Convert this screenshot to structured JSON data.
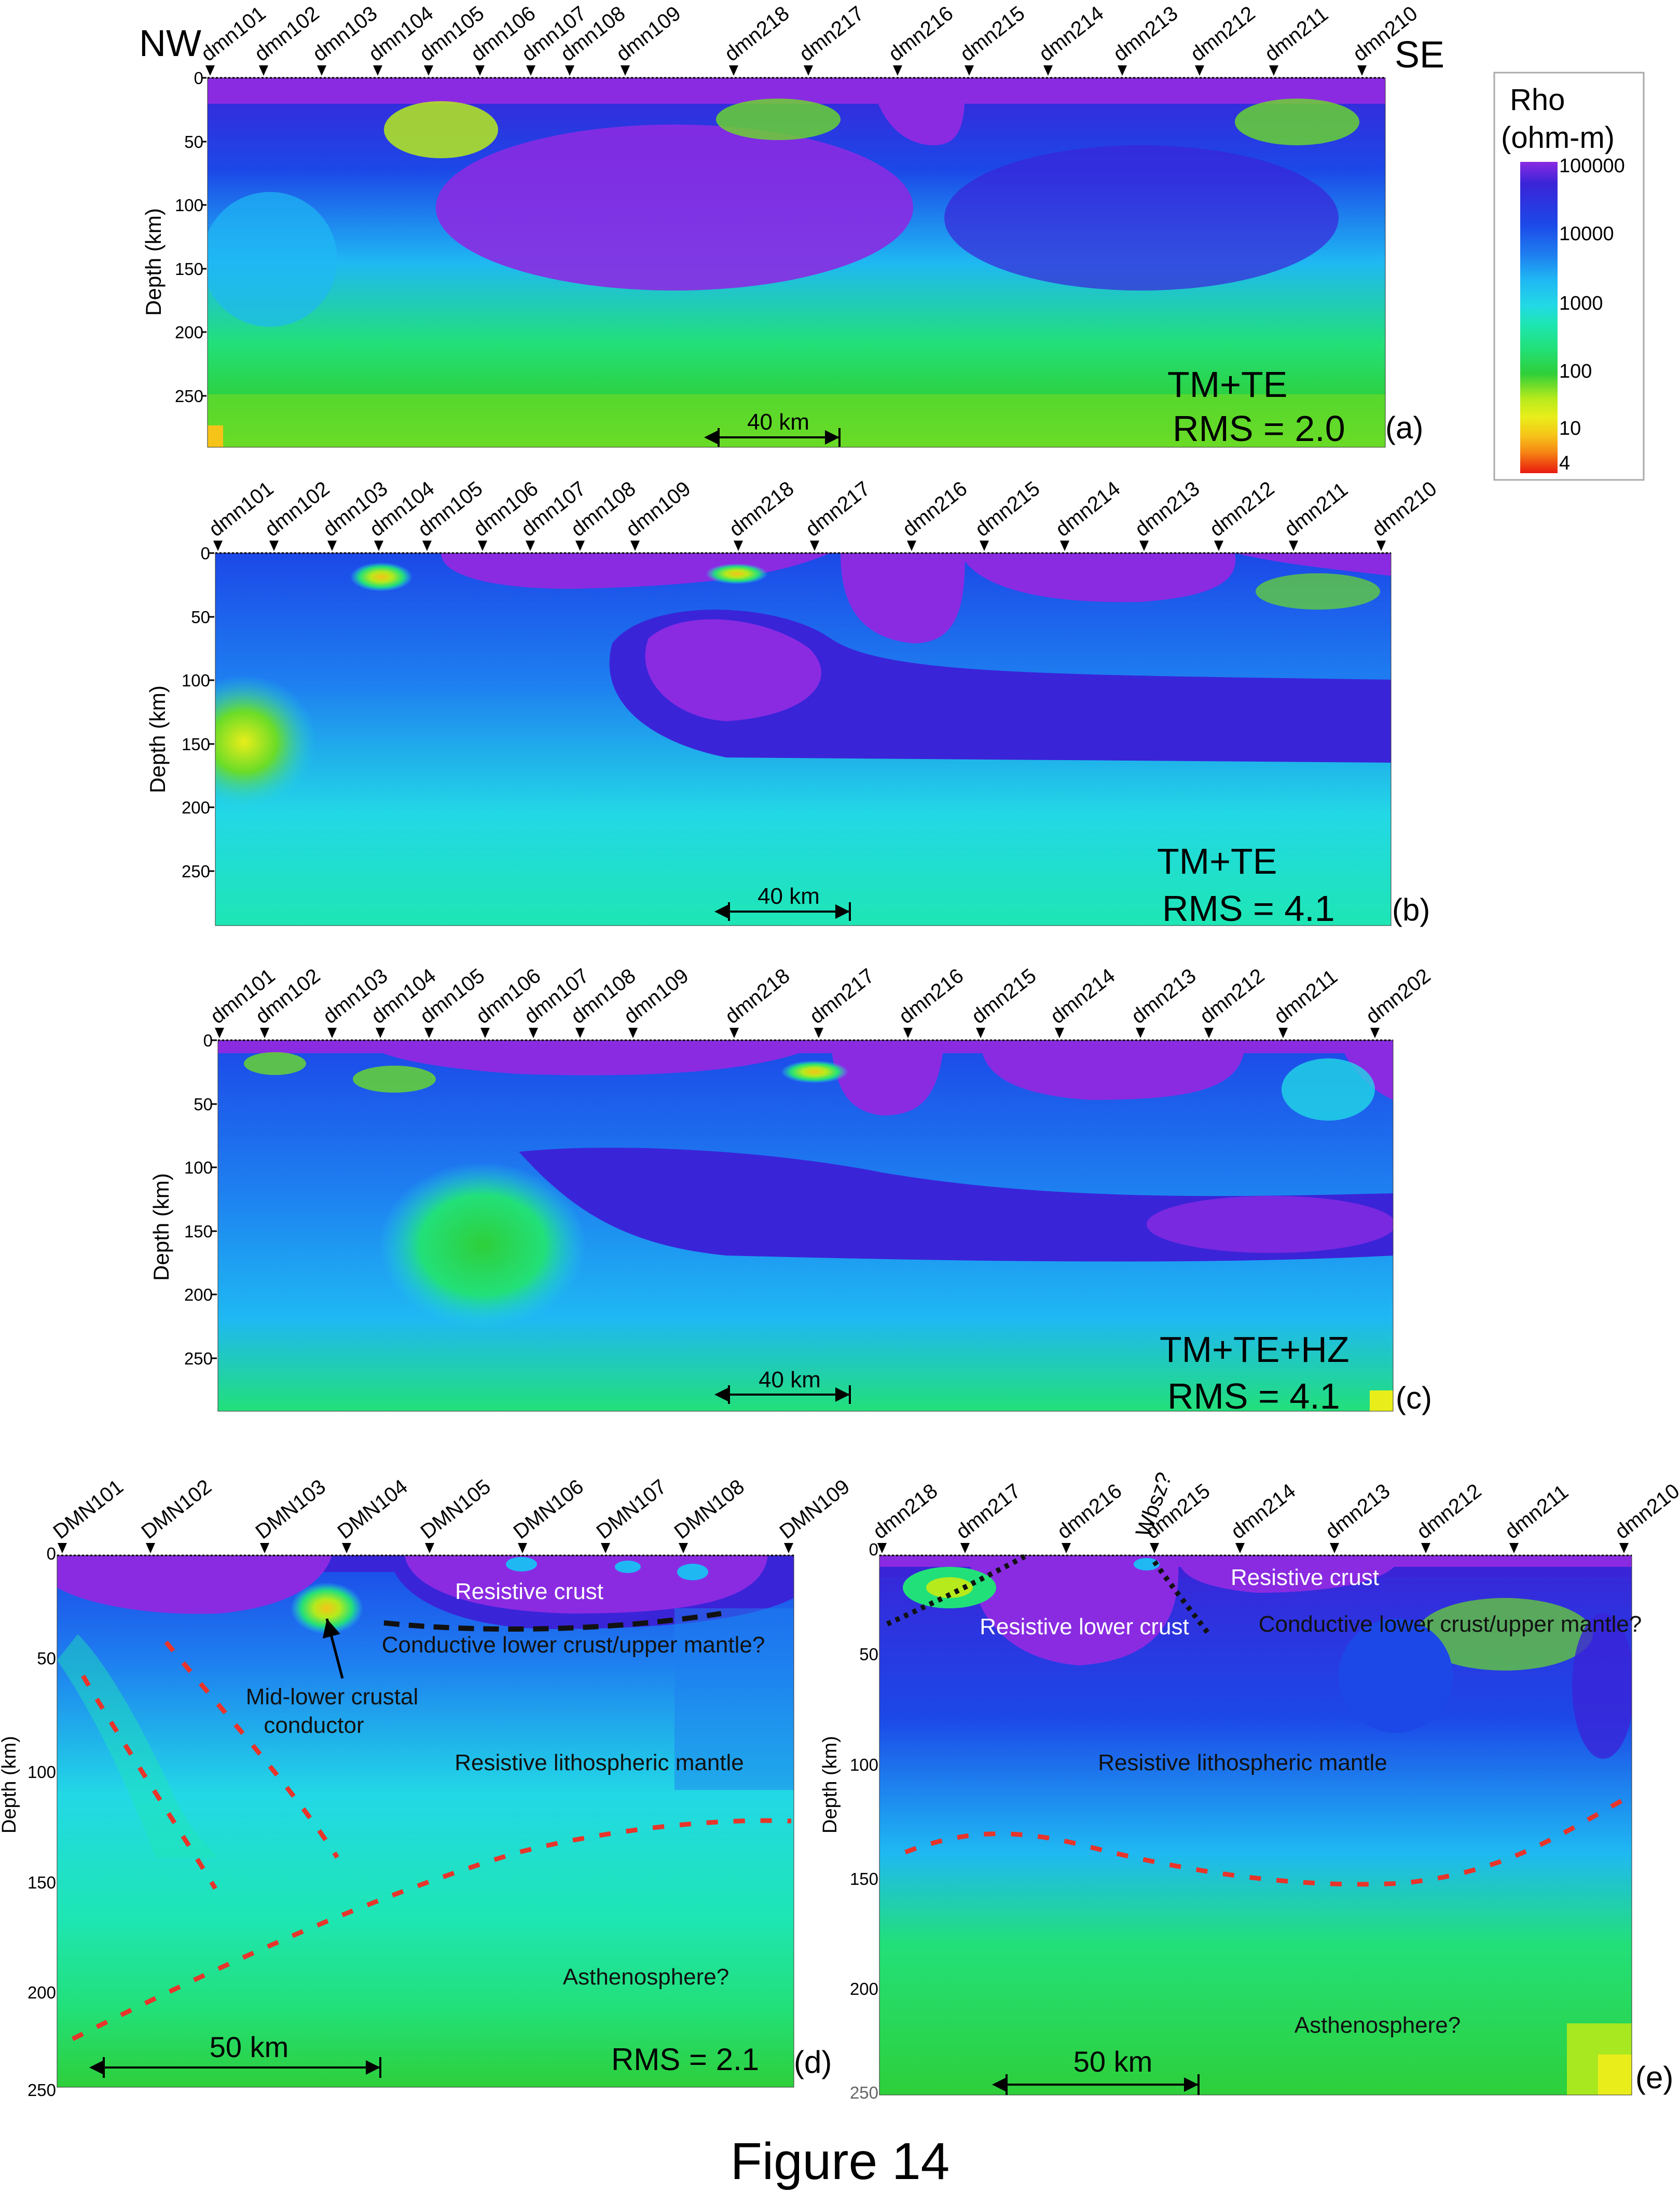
{
  "figure": {
    "caption": "Figure 14",
    "direction_left": "NW",
    "direction_right": "SE"
  },
  "legend": {
    "title_line1": "Rho",
    "title_line2": "(ohm-m)",
    "ticks": [
      "100000",
      "10000",
      "1000",
      "100",
      "10",
      "4"
    ],
    "colors": [
      "#8a2be2",
      "#3a24d8",
      "#1c48e8",
      "#1e7ff0",
      "#1fb8f3",
      "#22d8e6",
      "#1ee6b4",
      "#22e079",
      "#2ecf3a",
      "#6bdc27",
      "#b6ea1c",
      "#e9ee1a",
      "#f6c318",
      "#f68a14",
      "#f24f11",
      "#e8190f"
    ]
  },
  "panels": {
    "a": {
      "label": "(a)",
      "mode": "TM+TE",
      "rms": "RMS = 2.0",
      "y_label": "Depth (km)",
      "y_ticks": [
        "0",
        "50",
        "100",
        "150",
        "200",
        "250"
      ],
      "stations": [
        "dmn101",
        "dmn102",
        "dmn103",
        "dmn104",
        "dmn105",
        "dmn106",
        "dmn107",
        "dmn108",
        "dmn109",
        "dmn218",
        "dmn217",
        "dmn216",
        "dmn215",
        "dmn214",
        "dmn213",
        "dmn212",
        "dmn211",
        "dmn210"
      ],
      "scale_label": "40 km"
    },
    "b": {
      "label": "(b)",
      "mode": "TM+TE",
      "rms": "RMS = 4.1",
      "y_label": "Depth (km)",
      "y_ticks": [
        "0",
        "50",
        "100",
        "150",
        "200",
        "250"
      ],
      "stations": [
        "dmn101",
        "dmn102",
        "dmn103",
        "dmn104",
        "dmn105",
        "dmn106",
        "dmn107",
        "dmn108",
        "dmn109",
        "dmn218",
        "dmn217",
        "dmn216",
        "dmn215",
        "dmn214",
        "dmn213",
        "dmn212",
        "dmn211",
        "dmn210"
      ],
      "scale_label": "40 km"
    },
    "c": {
      "label": "(c)",
      "mode": "TM+TE+HZ",
      "rms": "RMS = 4.1",
      "y_label": "Depth (km)",
      "y_ticks": [
        "0",
        "50",
        "100",
        "150",
        "200",
        "250"
      ],
      "stations": [
        "dmn101",
        "dmn102",
        "dmn103",
        "dmn104",
        "dmn105",
        "dmn106",
        "dmn107",
        "dmn108",
        "dmn109",
        "dmn218",
        "dmn217",
        "dmn216",
        "dmn215",
        "dmn214",
        "dmn213",
        "dmn212",
        "dmn211",
        "dmn202"
      ],
      "scale_label": "40 km"
    },
    "d": {
      "label": "(d)",
      "rms": "RMS = 2.1",
      "y_label": "Depth (km)",
      "y_ticks": [
        "0",
        "50",
        "100",
        "150",
        "200",
        "250"
      ],
      "stations": [
        "DMN101",
        "DMN102",
        "DMN103",
        "DMN104",
        "DMN105",
        "DMN106",
        "DMN107",
        "DMN108",
        "DMN109"
      ],
      "scale_label": "50 km",
      "annotations": {
        "resistive_crust": "Resistive crust",
        "conductive_lower": "Conductive lower crust/upper mantle?",
        "conductor_line1": "Mid-lower crustal",
        "conductor_line2": "conductor",
        "lith_mantle": "Resistive lithospheric mantle",
        "asthenosphere": "Asthenosphere?"
      }
    },
    "e": {
      "label": "(e)",
      "y_label": "Depth (km)",
      "y_ticks": [
        "0",
        "50",
        "100",
        "150",
        "200",
        "250"
      ],
      "stations": [
        "dmn218",
        "dmn217",
        "dmn216",
        "dmn215",
        "dmn214",
        "dmn213",
        "dmn212",
        "dmn211",
        "dmn210"
      ],
      "wbsz": "Wbsz?",
      "scale_label": "50 km",
      "annotations": {
        "resistive_crust": "Resistive crust",
        "resistive_lower": "Resistive lower crust",
        "conductive_lower": "Conductive lower crust/upper mantle?",
        "lith_mantle": "Resistive lithospheric mantle",
        "asthenosphere": "Asthenosphere?"
      }
    }
  }
}
